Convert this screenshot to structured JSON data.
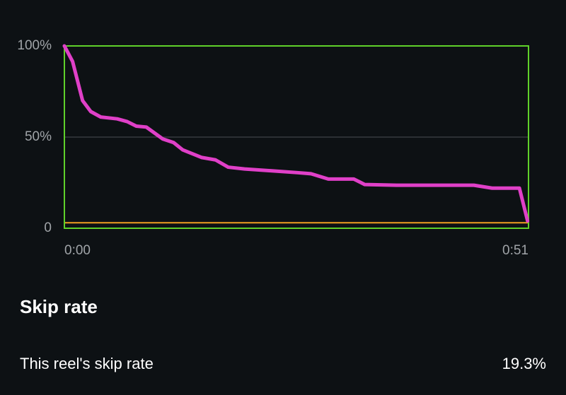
{
  "chart_data": {
    "type": "line",
    "x": [
      0,
      0.9,
      2,
      2.9,
      4,
      5.8,
      6.9,
      7.9,
      9,
      10.8,
      12,
      13,
      15.1,
      16.6,
      18,
      19.8,
      22.8,
      25.6,
      27.1,
      29,
      31.8,
      33,
      36.5,
      45,
      47,
      50,
      50.9
    ],
    "values": [
      100,
      91.5,
      70,
      64,
      61,
      60,
      58.5,
      56,
      55.5,
      49,
      47,
      43,
      38.8,
      37.5,
      33.5,
      32.5,
      31.5,
      30.5,
      29.9,
      27,
      27,
      24,
      23.6,
      23.6,
      22,
      22,
      4
    ],
    "color": "#e040c8",
    "reference_value": 3,
    "reference_color": "#f0a020",
    "frame_color": "#5fd12a",
    "xlim": [
      0,
      51
    ],
    "xticks": [
      {
        "value": 0,
        "label": "0:00"
      },
      {
        "value": 51,
        "label": "0:51"
      }
    ],
    "ylim": [
      0,
      100
    ],
    "yticks": [
      0,
      {
        "value": 50,
        "label": "50%"
      },
      {
        "value": 100,
        "label": "100%"
      }
    ],
    "grid": true
  },
  "section": {
    "title": "Skip rate",
    "rows": [
      {
        "label": "This reel's skip rate",
        "value": "19.3%"
      }
    ]
  }
}
